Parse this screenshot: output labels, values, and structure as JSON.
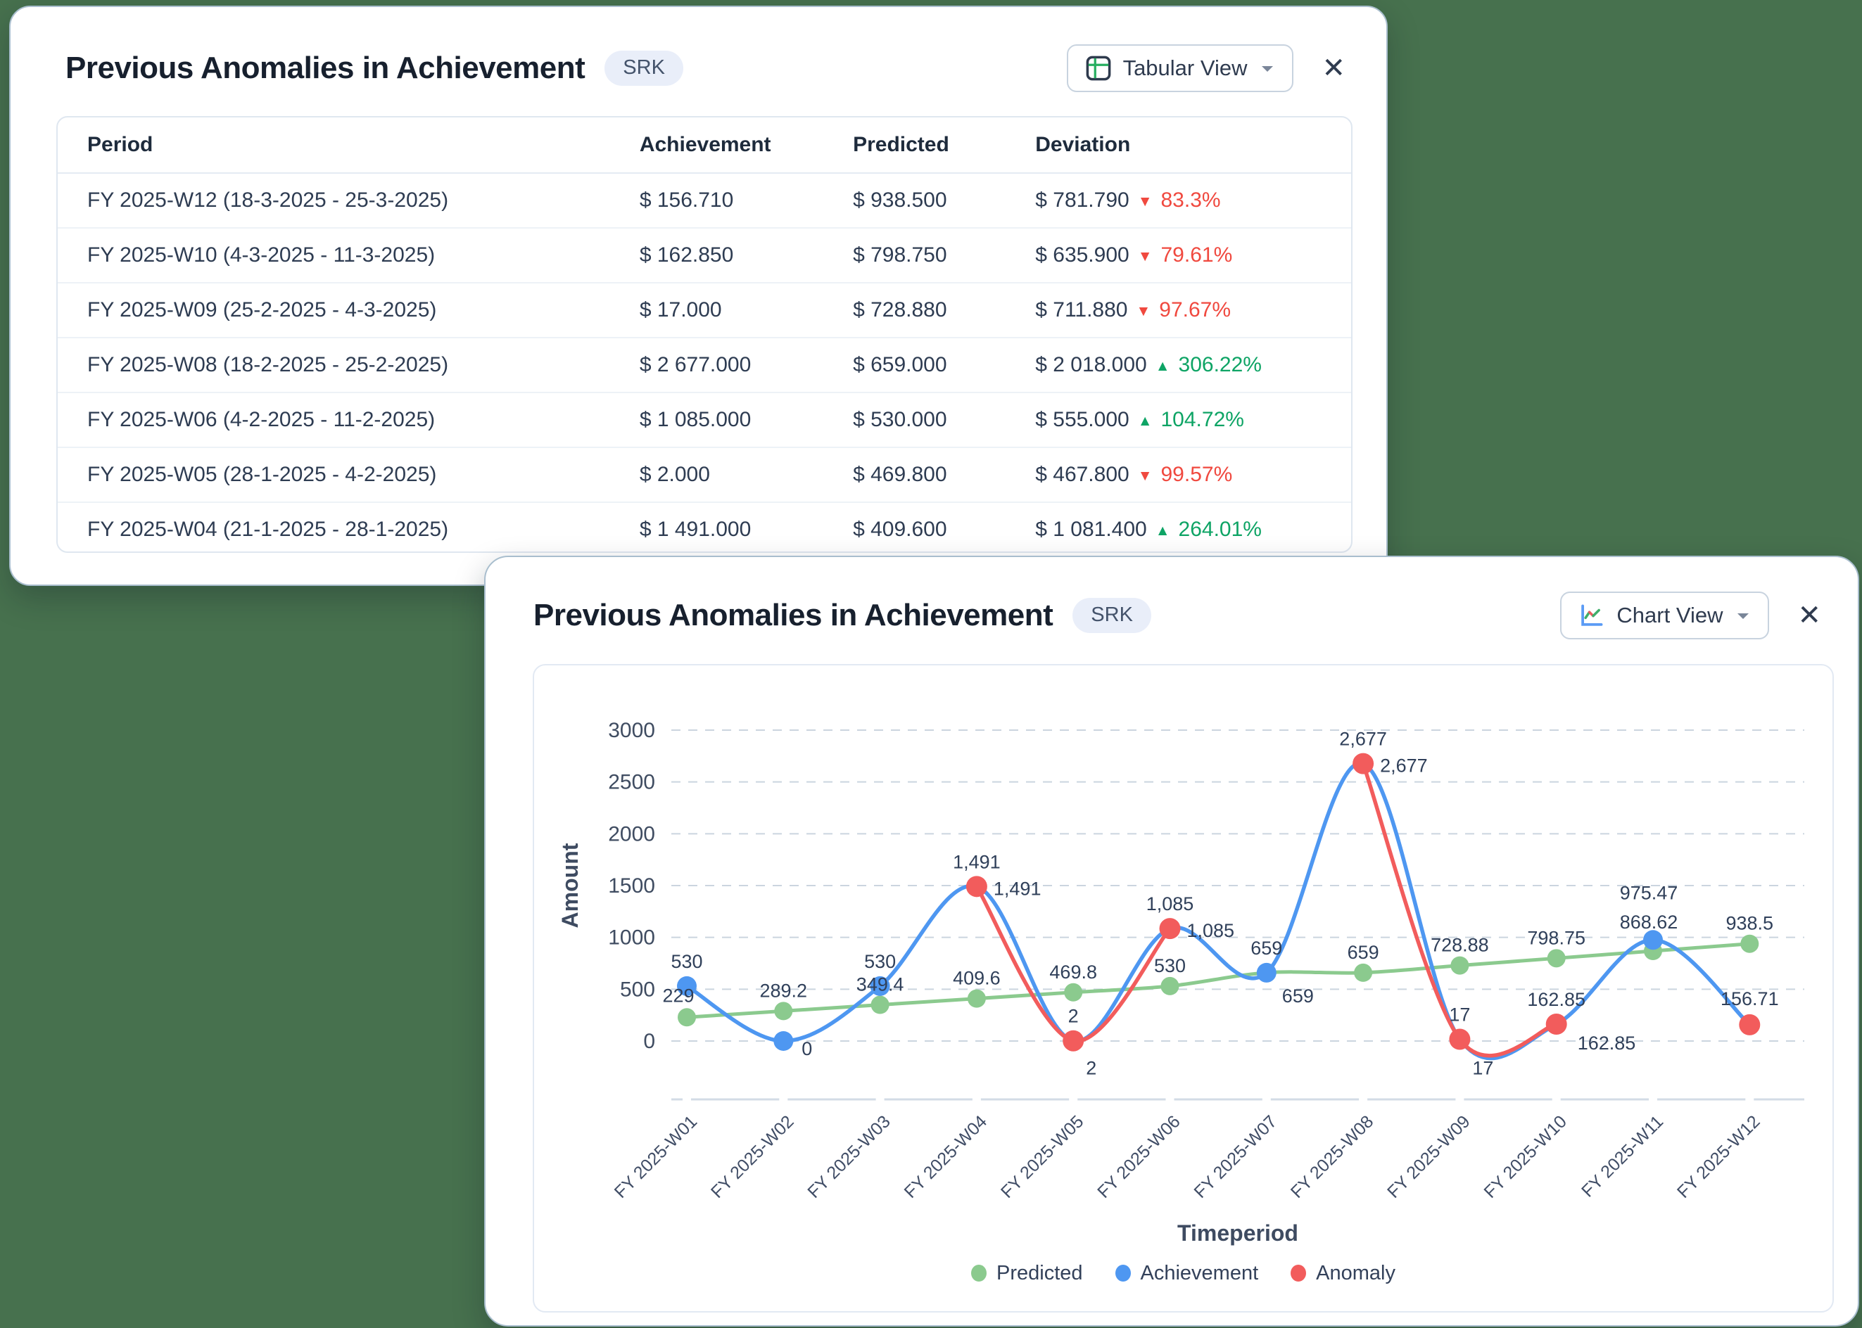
{
  "page": {
    "background": "#47714E"
  },
  "icons": {
    "close": "✕",
    "arrow_down": "▼",
    "arrow_up": "▲"
  },
  "colors": {
    "negative": "#F0493F",
    "positive": "#0EA465",
    "predicted": "#8BCA8E",
    "achievement": "#4E97F1",
    "anomaly": "#F25C5C",
    "grid": "#CBD5DF",
    "axis_text": "#3F4C61",
    "label_text": "#30405A"
  },
  "table_modal": {
    "title": "Previous Anomalies in Achievement",
    "badge": "SRK",
    "view_button": {
      "label": "Tabular View"
    },
    "table": {
      "columns": [
        "Period",
        "Achievement",
        "Predicted",
        "Deviation"
      ],
      "rows": [
        {
          "period": "FY 2025-W12 (18-3-2025 - 25-3-2025)",
          "achievement": "$ 156.710",
          "predicted": "$ 938.500",
          "deviation": "$ 781.790",
          "change": "83.3%",
          "direction": "down"
        },
        {
          "period": "FY 2025-W10 (4-3-2025 - 11-3-2025)",
          "achievement": "$ 162.850",
          "predicted": "$ 798.750",
          "deviation": "$ 635.900",
          "change": "79.61%",
          "direction": "down"
        },
        {
          "period": "FY 2025-W09 (25-2-2025 - 4-3-2025)",
          "achievement": "$ 17.000",
          "predicted": "$ 728.880",
          "deviation": "$ 711.880",
          "change": "97.67%",
          "direction": "down"
        },
        {
          "period": "FY 2025-W08 (18-2-2025 - 25-2-2025)",
          "achievement": "$ 2 677.000",
          "predicted": "$ 659.000",
          "deviation": "$ 2 018.000",
          "change": "306.22%",
          "direction": "up"
        },
        {
          "period": "FY 2025-W06 (4-2-2025 - 11-2-2025)",
          "achievement": "$ 1 085.000",
          "predicted": "$ 530.000",
          "deviation": "$ 555.000",
          "change": "104.72%",
          "direction": "up"
        },
        {
          "period": "FY 2025-W05 (28-1-2025 - 4-2-2025)",
          "achievement": "$ 2.000",
          "predicted": "$ 469.800",
          "deviation": "$ 467.800",
          "change": "99.57%",
          "direction": "down"
        },
        {
          "period": "FY 2025-W04 (21-1-2025 - 28-1-2025)",
          "achievement": "$ 1 491.000",
          "predicted": "$ 409.600",
          "deviation": "$ 1 081.400",
          "change": "264.01%",
          "direction": "up"
        }
      ]
    }
  },
  "chart_modal": {
    "title": "Previous Anomalies in Achievement",
    "badge": "SRK",
    "view_button": {
      "label": "Chart View"
    }
  },
  "chart_data": {
    "type": "line",
    "x": [
      "FY 2025-W01",
      "FY 2025-W02",
      "FY 2025-W03",
      "FY 2025-W04",
      "FY 2025-W05",
      "FY 2025-W06",
      "FY 2025-W07",
      "FY 2025-W08",
      "FY 2025-W09",
      "FY 2025-W10",
      "FY 2025-W11",
      "FY 2025-W12"
    ],
    "xlabel": "Timeperiod",
    "ylabel": "Amount",
    "ylim": [
      0,
      3000
    ],
    "ytick_step": 500,
    "grid": true,
    "legend_position": "bottom",
    "series": [
      {
        "name": "Predicted",
        "color": "#8BCA8E",
        "draw": "line",
        "values": [
          229,
          289.2,
          349.4,
          409.6,
          469.8,
          530,
          659,
          659,
          728.88,
          798.75,
          868.62,
          938.5
        ],
        "labels": [
          "229",
          "289.2",
          "349.4",
          "409.6",
          "469.8",
          "530",
          "659",
          "659",
          "728.88",
          "798.75",
          "868.62",
          "938.5"
        ]
      },
      {
        "name": "Achievement",
        "color": "#4E97F1",
        "draw": "line",
        "values": [
          530,
          0,
          530,
          1491,
          2,
          1085,
          659,
          2677,
          17,
          162.85,
          975.47,
          156.71
        ],
        "labels": [
          "530",
          "0",
          "530",
          "1,491",
          "2",
          "1,085",
          "659",
          "2,677",
          "17",
          "162.85",
          "975.47",
          ""
        ]
      },
      {
        "name": "Anomaly",
        "color": "#F25C5C",
        "draw": "runs",
        "values": [
          null,
          null,
          null,
          1491,
          2,
          1085,
          null,
          2677,
          17,
          162.85,
          null,
          156.71
        ],
        "labels": [
          "",
          "",
          "",
          "1,491",
          "2",
          "1,085",
          "",
          "2,677",
          "17",
          "162.85",
          "",
          "156.71"
        ]
      }
    ]
  }
}
